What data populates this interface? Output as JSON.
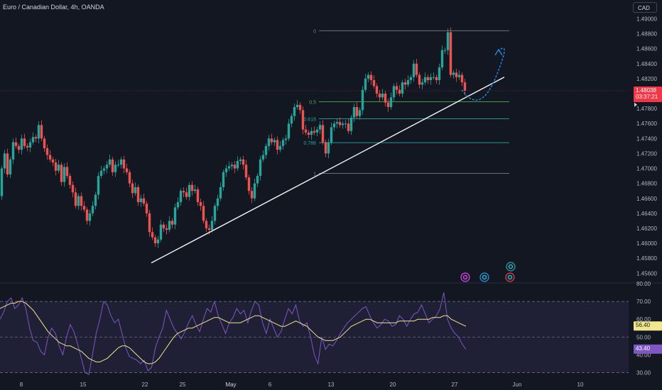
{
  "header": {
    "title": "Euro / Canadian Dollar, 4h, OANDA",
    "currency": "CAD"
  },
  "chart_data": [
    {
      "type": "candlestick",
      "title": "Euro / Canadian Dollar, 4h, OANDA",
      "ylim": [
        1.4548,
        1.4908
      ],
      "y_ticks": [
        "1.49000",
        "1.48800",
        "1.48600",
        "1.48400",
        "1.48200",
        "1.48000",
        "1.47800",
        "1.47600",
        "1.47400",
        "1.47200",
        "1.47000",
        "1.46800",
        "1.46600",
        "1.46400",
        "1.46200",
        "1.46000",
        "1.45800",
        "1.45600"
      ],
      "x_ticks": [
        "8",
        "15",
        "22",
        "25",
        "May",
        "6",
        "13",
        "20",
        "27",
        "Jun",
        "10"
      ],
      "last_price": "1.48038",
      "countdown": "03:37:21",
      "price_path": [
        [
          0,
          1.4663
        ],
        [
          4,
          1.47
        ],
        [
          8,
          1.472
        ],
        [
          12,
          1.4692
        ],
        [
          16,
          1.4712
        ],
        [
          20,
          1.4735
        ],
        [
          24,
          1.473
        ],
        [
          28,
          1.4725
        ],
        [
          32,
          1.474
        ],
        [
          36,
          1.473
        ],
        [
          40,
          1.4728
        ],
        [
          44,
          1.4735
        ],
        [
          48,
          1.4742
        ],
        [
          52,
          1.474
        ],
        [
          56,
          1.4758
        ],
        [
          60,
          1.474
        ],
        [
          64,
          1.4727
        ],
        [
          68,
          1.4718
        ],
        [
          72,
          1.4712
        ],
        [
          76,
          1.4708
        ],
        [
          80,
          1.4697
        ],
        [
          84,
          1.4705
        ],
        [
          88,
          1.4682
        ],
        [
          92,
          1.4702
        ],
        [
          96,
          1.469
        ],
        [
          100,
          1.4678
        ],
        [
          104,
          1.4668
        ],
        [
          108,
          1.465
        ],
        [
          112,
          1.4663
        ],
        [
          116,
          1.465
        ],
        [
          120,
          1.4645
        ],
        [
          124,
          1.463
        ],
        [
          128,
          1.464
        ],
        [
          132,
          1.465
        ],
        [
          136,
          1.4665
        ],
        [
          140,
          1.469
        ],
        [
          144,
          1.4697
        ],
        [
          148,
          1.47
        ],
        [
          152,
          1.4705
        ],
        [
          156,
          1.4712
        ],
        [
          160,
          1.4695
        ],
        [
          164,
          1.4705
        ],
        [
          168,
          1.4705
        ],
        [
          172,
          1.4712
        ],
        [
          176,
          1.47
        ],
        [
          180,
          1.4695
        ],
        [
          184,
          1.468
        ],
        [
          188,
          1.4667
        ],
        [
          192,
          1.4675
        ],
        [
          196,
          1.4655
        ],
        [
          200,
          1.466
        ],
        [
          204,
          1.4653
        ],
        [
          208,
          1.464
        ],
        [
          212,
          1.4615
        ],
        [
          216,
          1.4608
        ],
        [
          220,
          1.46
        ],
        [
          224,
          1.4605
        ],
        [
          228,
          1.4625
        ],
        [
          232,
          1.462
        ],
        [
          236,
          1.4618
        ],
        [
          240,
          1.463
        ],
        [
          244,
          1.4625
        ],
        [
          248,
          1.4648
        ],
        [
          252,
          1.4655
        ],
        [
          256,
          1.467
        ],
        [
          260,
          1.4668
        ],
        [
          264,
          1.4662
        ],
        [
          268,
          1.4678
        ],
        [
          272,
          1.467
        ],
        [
          276,
          1.4672
        ],
        [
          280,
          1.4655
        ],
        [
          284,
          1.465
        ],
        [
          288,
          1.463
        ],
        [
          292,
          1.462
        ],
        [
          296,
          1.4618
        ],
        [
          300,
          1.463
        ],
        [
          304,
          1.465
        ],
        [
          308,
          1.466
        ],
        [
          312,
          1.4675
        ],
        [
          316,
          1.4695
        ],
        [
          320,
          1.47
        ],
        [
          324,
          1.4703
        ],
        [
          328,
          1.4705
        ],
        [
          332,
          1.47
        ],
        [
          336,
          1.471
        ],
        [
          340,
          1.4712
        ],
        [
          344,
          1.4705
        ],
        [
          348,
          1.4688
        ],
        [
          352,
          1.467
        ],
        [
          356,
          1.466
        ],
        [
          360,
          1.468
        ],
        [
          364,
          1.469
        ],
        [
          368,
          1.4712
        ],
        [
          372,
          1.4718
        ],
        [
          376,
          1.473
        ],
        [
          380,
          1.474
        ],
        [
          384,
          1.4735
        ],
        [
          388,
          1.4738
        ],
        [
          392,
          1.4725
        ],
        [
          396,
          1.473
        ],
        [
          400,
          1.4738
        ],
        [
          404,
          1.474
        ],
        [
          408,
          1.476
        ],
        [
          412,
          1.477
        ],
        [
          416,
          1.4782
        ],
        [
          420,
          1.4785
        ],
        [
          424,
          1.4778
        ],
        [
          428,
          1.4752
        ],
        [
          432,
          1.4748
        ],
        [
          436,
          1.4745
        ],
        [
          440,
          1.475
        ],
        [
          444,
          1.4748
        ],
        [
          448,
          1.4752
        ],
        [
          452,
          1.4758
        ],
        [
          456,
          1.4735
        ],
        [
          460,
          1.472
        ],
        [
          464,
          1.4735
        ],
        [
          468,
          1.4755
        ],
        [
          472,
          1.476
        ],
        [
          476,
          1.4762
        ],
        [
          480,
          1.4758
        ],
        [
          484,
          1.476
        ],
        [
          488,
          1.476
        ],
        [
          492,
          1.475
        ],
        [
          496,
          1.4768
        ],
        [
          500,
          1.4782
        ],
        [
          504,
          1.477
        ],
        [
          508,
          1.4778
        ],
        [
          512,
          1.4805
        ],
        [
          516,
          1.482
        ],
        [
          520,
          1.4825
        ],
        [
          524,
          1.4818
        ],
        [
          528,
          1.481
        ],
        [
          532,
          1.48
        ],
        [
          536,
          1.4795
        ],
        [
          540,
          1.48
        ],
        [
          544,
          1.4788
        ],
        [
          548,
          1.4782
        ],
        [
          552,
          1.4795
        ],
        [
          556,
          1.481
        ],
        [
          560,
          1.4805
        ],
        [
          564,
          1.48
        ],
        [
          568,
          1.4815
        ],
        [
          572,
          1.4812
        ],
        [
          576,
          1.4818
        ],
        [
          580,
          1.4822
        ],
        [
          584,
          1.484
        ],
        [
          588,
          1.4825
        ],
        [
          592,
          1.4812
        ],
        [
          596,
          1.4815
        ],
        [
          600,
          1.4822
        ],
        [
          604,
          1.4818
        ],
        [
          608,
          1.4822
        ],
        [
          612,
          1.4822
        ],
        [
          616,
          1.4818
        ],
        [
          620,
          1.4835
        ],
        [
          624,
          1.4858
        ],
        [
          628,
          1.4858
        ],
        [
          632,
          1.4882
        ],
        [
          636,
          1.4825
        ],
        [
          640,
          1.4828
        ],
        [
          644,
          1.4822
        ],
        [
          648,
          1.4825
        ],
        [
          652,
          1.4815
        ],
        [
          656,
          1.4804
        ]
      ],
      "fibonacci": [
        {
          "label": "0",
          "price": 1.4884
        },
        {
          "label": "0.5",
          "price": 1.4789
        },
        {
          "label": "0.618",
          "price": 1.47663
        },
        {
          "label": "0.786",
          "price": 1.47345
        },
        {
          "label": "1",
          "price": 1.46935
        }
      ],
      "trendline": [
        [
          213,
          1.45738
        ],
        [
          710,
          1.4822
        ]
      ],
      "projection": [
        [
          650,
          1.4805
        ],
        [
          676,
          1.479
        ],
        [
          698,
          1.4822
        ],
        [
          702,
          1.4857
        ]
      ],
      "icons": [
        "lightning-icon",
        "gear-icon",
        "gear-icon",
        "gear-icon"
      ]
    },
    {
      "type": "line",
      "title": "",
      "ylim": [
        29,
        80
      ],
      "y_ticks": [
        "80.00",
        "70.00",
        "60.00",
        "50.00",
        "40.00",
        "30.00"
      ],
      "bands": {
        "upper": 70,
        "middle": 50,
        "lower": 30
      },
      "series": [
        {
          "color": "#7e57c2",
          "current": "43.40",
          "values": [
            60,
            64,
            70,
            72,
            66,
            68,
            72,
            66,
            55,
            48,
            47,
            42,
            40,
            50,
            55,
            52,
            45,
            40,
            50,
            57,
            53,
            46,
            38,
            30,
            29,
            40,
            52,
            60,
            70,
            68,
            62,
            58,
            60,
            52,
            44,
            39,
            38,
            37,
            35,
            37,
            31,
            33,
            44,
            50,
            55,
            65,
            60,
            55,
            52,
            49,
            53,
            58,
            62,
            57,
            53,
            60,
            66,
            64,
            70,
            62,
            57,
            52,
            58,
            61,
            66,
            63,
            65,
            58,
            65,
            70,
            68,
            58,
            52,
            60,
            55,
            50,
            53,
            60,
            66,
            63,
            68,
            59,
            56,
            58,
            50,
            40,
            35,
            50,
            43,
            46,
            45,
            48,
            52,
            55,
            58,
            60,
            62,
            64,
            66,
            67,
            62,
            58,
            55,
            57,
            60,
            59,
            56,
            57,
            62,
            60,
            56,
            60,
            63,
            64,
            68,
            63,
            58,
            60,
            62,
            66,
            75,
            60,
            55,
            52,
            50,
            46,
            43
          ]
        },
        {
          "color": "#f0e68c",
          "current": "56.40",
          "values": [
            66,
            67,
            68,
            69,
            69,
            70,
            70,
            69,
            67,
            65,
            62,
            59,
            56,
            53,
            51,
            49,
            47,
            46,
            45,
            45,
            44,
            43,
            42,
            40,
            38,
            37,
            36,
            36,
            37,
            38,
            40,
            42,
            44,
            45,
            45,
            44,
            42,
            40,
            38,
            36,
            35,
            35,
            36,
            38,
            41,
            44,
            47,
            50,
            52,
            53,
            54,
            55,
            55,
            56,
            57,
            58,
            59,
            60,
            61,
            61,
            60,
            59,
            58,
            58,
            58,
            58,
            59,
            60,
            61,
            62,
            62,
            61,
            60,
            59,
            58,
            57,
            56,
            56,
            57,
            58,
            59,
            58,
            57,
            56,
            54,
            52,
            50,
            49,
            48,
            48,
            48,
            49,
            50,
            52,
            54,
            56,
            57,
            58,
            59,
            60,
            60,
            59,
            58,
            58,
            58,
            58,
            58,
            58,
            59,
            59,
            59,
            59,
            59,
            60,
            60,
            60,
            60,
            61,
            61,
            61,
            62,
            62,
            60,
            59,
            58,
            57,
            56
          ]
        }
      ]
    }
  ]
}
